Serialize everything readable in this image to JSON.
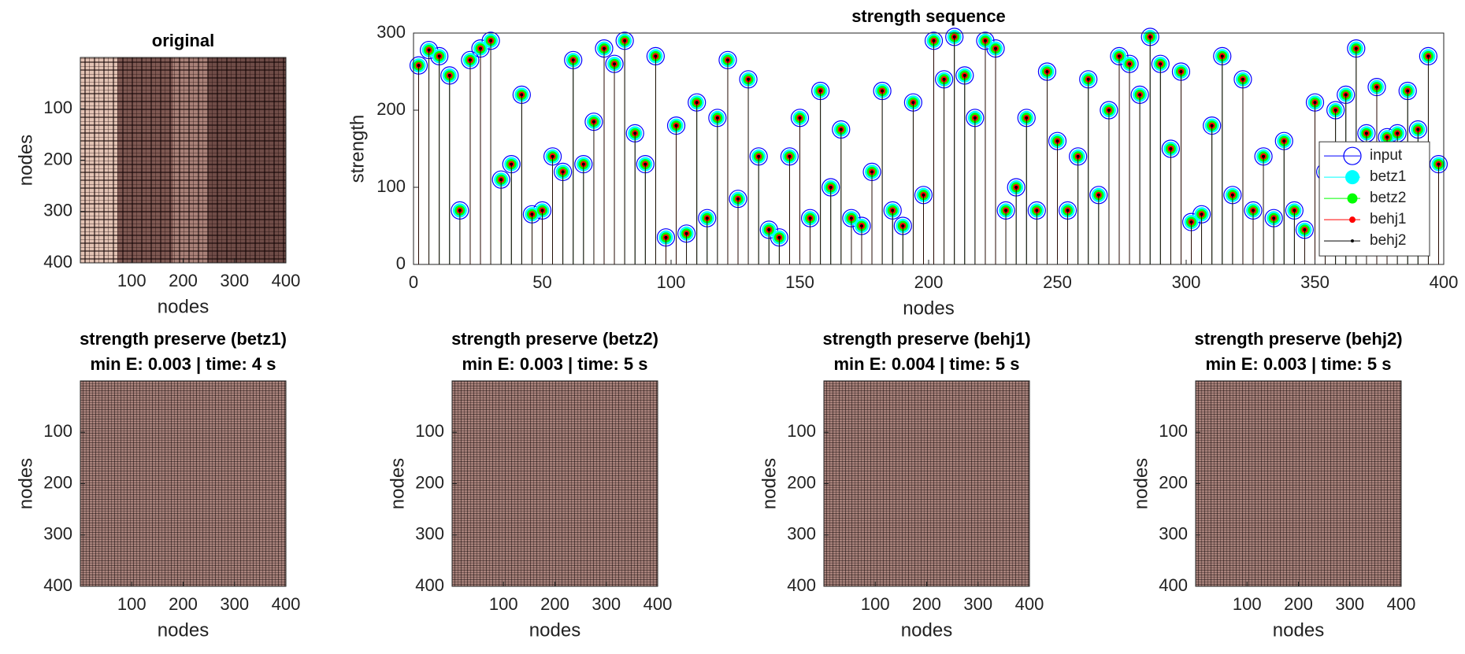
{
  "chart_data": [
    {
      "type": "heatmap",
      "title": [
        "original"
      ],
      "xlabel": "nodes",
      "ylabel": "nodes",
      "xlim": [
        0,
        400
      ],
      "ylim": [
        0,
        400
      ],
      "y_reversed": true,
      "xticks": [
        100,
        200,
        300,
        400
      ],
      "yticks": [
        100,
        200,
        300,
        400
      ]
    },
    {
      "type": "stem",
      "title": [
        "strength sequence"
      ],
      "xlabel": "nodes",
      "ylabel": "strength",
      "xlim": [
        0,
        400
      ],
      "ylim": [
        0,
        300
      ],
      "xticks": [
        0,
        50,
        100,
        150,
        200,
        250,
        300,
        350,
        400
      ],
      "yticks": [
        0,
        100,
        200,
        300
      ],
      "legend": "east",
      "x": [
        2,
        6,
        10,
        14,
        18,
        22,
        26,
        30,
        34,
        38,
        42,
        46,
        50,
        54,
        58,
        62,
        66,
        70,
        74,
        78,
        82,
        86,
        90,
        94,
        98,
        102,
        106,
        110,
        114,
        118,
        122,
        126,
        130,
        134,
        138,
        142,
        146,
        150,
        154,
        158,
        162,
        166,
        170,
        174,
        178,
        182,
        186,
        190,
        194,
        198,
        202,
        206,
        210,
        214,
        218,
        222,
        226,
        230,
        234,
        238,
        242,
        246,
        250,
        254,
        258,
        262,
        266,
        270,
        274,
        278,
        282,
        286,
        290,
        294,
        298,
        302,
        306,
        310,
        314,
        318,
        322,
        326,
        330,
        334,
        338,
        342,
        346,
        350,
        354,
        358,
        362,
        366,
        370,
        374,
        378,
        382,
        386,
        390,
        394,
        398
      ],
      "series": [
        {
          "name": "input",
          "color": "#0000ff",
          "values": [
            258,
            278,
            270,
            245,
            70,
            265,
            280,
            290,
            110,
            130,
            220,
            65,
            70,
            140,
            120,
            265,
            130,
            185,
            280,
            260,
            290,
            170,
            130,
            270,
            35,
            180,
            40,
            210,
            60,
            190,
            265,
            85,
            240,
            140,
            45,
            35,
            140,
            190,
            60,
            225,
            100,
            175,
            60,
            50,
            120,
            225,
            70,
            50,
            210,
            90,
            290,
            240,
            295,
            245,
            190,
            290,
            280,
            70,
            100,
            190,
            70,
            250,
            160,
            70,
            140,
            240,
            90,
            200,
            270,
            260,
            220,
            295,
            260,
            150,
            250,
            55,
            65,
            180,
            270,
            90,
            240,
            70,
            140,
            60,
            160,
            70,
            45,
            210,
            120,
            200,
            220,
            280,
            170,
            230,
            165,
            170,
            225,
            175,
            270,
            130
          ]
        },
        {
          "name": "betz1",
          "color": "#00ffff",
          "values": [
            258,
            278,
            270,
            245,
            70,
            265,
            280,
            290,
            110,
            130,
            220,
            65,
            70,
            140,
            120,
            265,
            130,
            185,
            280,
            260,
            290,
            170,
            130,
            270,
            35,
            180,
            40,
            210,
            60,
            190,
            265,
            85,
            240,
            140,
            45,
            35,
            140,
            190,
            60,
            225,
            100,
            175,
            60,
            50,
            120,
            225,
            70,
            50,
            210,
            90,
            290,
            240,
            295,
            245,
            190,
            290,
            280,
            70,
            100,
            190,
            70,
            250,
            160,
            70,
            140,
            240,
            90,
            200,
            270,
            260,
            220,
            295,
            260,
            150,
            250,
            55,
            65,
            180,
            270,
            90,
            240,
            70,
            140,
            60,
            160,
            70,
            45,
            210,
            120,
            200,
            220,
            280,
            170,
            230,
            165,
            170,
            225,
            175,
            270,
            130
          ]
        },
        {
          "name": "betz2",
          "color": "#00ff00",
          "values": [
            258,
            278,
            270,
            245,
            70,
            265,
            280,
            290,
            110,
            130,
            220,
            65,
            70,
            140,
            120,
            265,
            130,
            185,
            280,
            260,
            290,
            170,
            130,
            270,
            35,
            180,
            40,
            210,
            60,
            190,
            265,
            85,
            240,
            140,
            45,
            35,
            140,
            190,
            60,
            225,
            100,
            175,
            60,
            50,
            120,
            225,
            70,
            50,
            210,
            90,
            290,
            240,
            295,
            245,
            190,
            290,
            280,
            70,
            100,
            190,
            70,
            250,
            160,
            70,
            140,
            240,
            90,
            200,
            270,
            260,
            220,
            295,
            260,
            150,
            250,
            55,
            65,
            180,
            270,
            90,
            240,
            70,
            140,
            60,
            160,
            70,
            45,
            210,
            120,
            200,
            220,
            280,
            170,
            230,
            165,
            170,
            225,
            175,
            270,
            130
          ]
        },
        {
          "name": "behj1",
          "color": "#ff0000",
          "values": [
            258,
            278,
            270,
            245,
            70,
            265,
            280,
            290,
            110,
            130,
            220,
            65,
            70,
            140,
            120,
            265,
            130,
            185,
            280,
            260,
            290,
            170,
            130,
            270,
            35,
            180,
            40,
            210,
            60,
            190,
            265,
            85,
            240,
            140,
            45,
            35,
            140,
            190,
            60,
            225,
            100,
            175,
            60,
            50,
            120,
            225,
            70,
            50,
            210,
            90,
            290,
            240,
            295,
            245,
            190,
            290,
            280,
            70,
            100,
            190,
            70,
            250,
            160,
            70,
            140,
            240,
            90,
            200,
            270,
            260,
            220,
            295,
            260,
            150,
            250,
            55,
            65,
            180,
            270,
            90,
            240,
            70,
            140,
            60,
            160,
            70,
            45,
            210,
            120,
            200,
            220,
            280,
            170,
            230,
            165,
            170,
            225,
            175,
            270,
            130
          ]
        },
        {
          "name": "behj2",
          "color": "#000000",
          "values": [
            258,
            278,
            270,
            245,
            70,
            265,
            280,
            290,
            110,
            130,
            220,
            65,
            70,
            140,
            120,
            265,
            130,
            185,
            280,
            260,
            290,
            170,
            130,
            270,
            35,
            180,
            40,
            210,
            60,
            190,
            265,
            85,
            240,
            140,
            45,
            35,
            140,
            190,
            60,
            225,
            100,
            175,
            60,
            50,
            120,
            225,
            70,
            50,
            210,
            90,
            290,
            240,
            295,
            245,
            190,
            290,
            280,
            70,
            100,
            190,
            70,
            250,
            160,
            70,
            140,
            240,
            90,
            200,
            270,
            260,
            220,
            295,
            260,
            150,
            250,
            55,
            65,
            180,
            270,
            90,
            240,
            70,
            140,
            60,
            160,
            70,
            45,
            210,
            120,
            200,
            220,
            280,
            170,
            230,
            165,
            170,
            225,
            175,
            270,
            130
          ]
        }
      ]
    },
    {
      "type": "heatmap",
      "title": [
        "strength preserve (betz1)",
        "min E: 0.003 | time: 4 s"
      ],
      "xlabel": "nodes",
      "ylabel": "nodes",
      "xlim": [
        0,
        400
      ],
      "ylim": [
        0,
        400
      ],
      "y_reversed": true,
      "xticks": [
        100,
        200,
        300,
        400
      ],
      "yticks": [
        100,
        200,
        300,
        400
      ]
    },
    {
      "type": "heatmap",
      "title": [
        "strength preserve (betz2)",
        "min E: 0.003 | time: 5 s"
      ],
      "xlabel": "nodes",
      "ylabel": "nodes",
      "xlim": [
        0,
        400
      ],
      "ylim": [
        0,
        400
      ],
      "y_reversed": true,
      "xticks": [
        100,
        200,
        300,
        400
      ],
      "yticks": [
        100,
        200,
        300,
        400
      ]
    },
    {
      "type": "heatmap",
      "title": [
        "strength preserve (behj1)",
        "min E: 0.004 | time: 5 s"
      ],
      "xlabel": "nodes",
      "ylabel": "nodes",
      "xlim": [
        0,
        400
      ],
      "ylim": [
        0,
        400
      ],
      "y_reversed": true,
      "xticks": [
        100,
        200,
        300,
        400
      ],
      "yticks": [
        100,
        200,
        300,
        400
      ]
    },
    {
      "type": "heatmap",
      "title": [
        "strength preserve (behj2)",
        "min E: 0.003 | time: 5 s"
      ],
      "xlabel": "nodes",
      "ylabel": "nodes",
      "xlim": [
        0,
        400
      ],
      "ylim": [
        0,
        400
      ],
      "y_reversed": true,
      "xticks": [
        100,
        200,
        300,
        400
      ],
      "yticks": [
        100,
        200,
        300,
        400
      ]
    }
  ]
}
